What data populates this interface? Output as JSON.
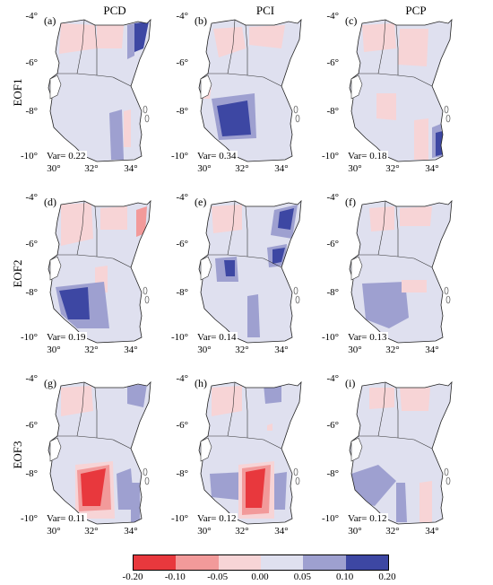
{
  "columns": [
    "PCD",
    "PCI",
    "PCP"
  ],
  "rows": [
    "EOF1",
    "EOF2",
    "EOF3"
  ],
  "panels": [
    {
      "label": "(a)",
      "var": "Var= 0.22"
    },
    {
      "label": "(b)",
      "var": "Var= 0.34"
    },
    {
      "label": "(c)",
      "var": "Var= 0.18"
    },
    {
      "label": "(d)",
      "var": "Var= 0.19"
    },
    {
      "label": "(e)",
      "var": "Var= 0.14"
    },
    {
      "label": "(f)",
      "var": "Var= 0.13"
    },
    {
      "label": "(g)",
      "var": "Var= 0.11"
    },
    {
      "label": "(h)",
      "var": "Var= 0.12"
    },
    {
      "label": "(i)",
      "var": "Var= 0.12"
    }
  ],
  "y_ticks": [
    "-4°",
    "-6°",
    "-8°",
    "-10°"
  ],
  "x_ticks": [
    "30°",
    "32°",
    "34°"
  ],
  "colorbar": {
    "ticks": [
      "-0.20",
      "-0.10",
      "-0.05",
      "0.00",
      "0.05",
      "0.10",
      "0.20"
    ],
    "colors": [
      "#e8383d",
      "#f29a9a",
      "#f7d4d6",
      "#dfe0ef",
      "#9ea0d0",
      "#3d47a3"
    ]
  },
  "colors": {
    "neg_strong": "#e8383d",
    "neg_mid": "#f29a9a",
    "neg_weak": "#f7d4d6",
    "pos_weak": "#dfe0ef",
    "pos_mid": "#9ea0d0",
    "pos_strong": "#3d47a3"
  }
}
